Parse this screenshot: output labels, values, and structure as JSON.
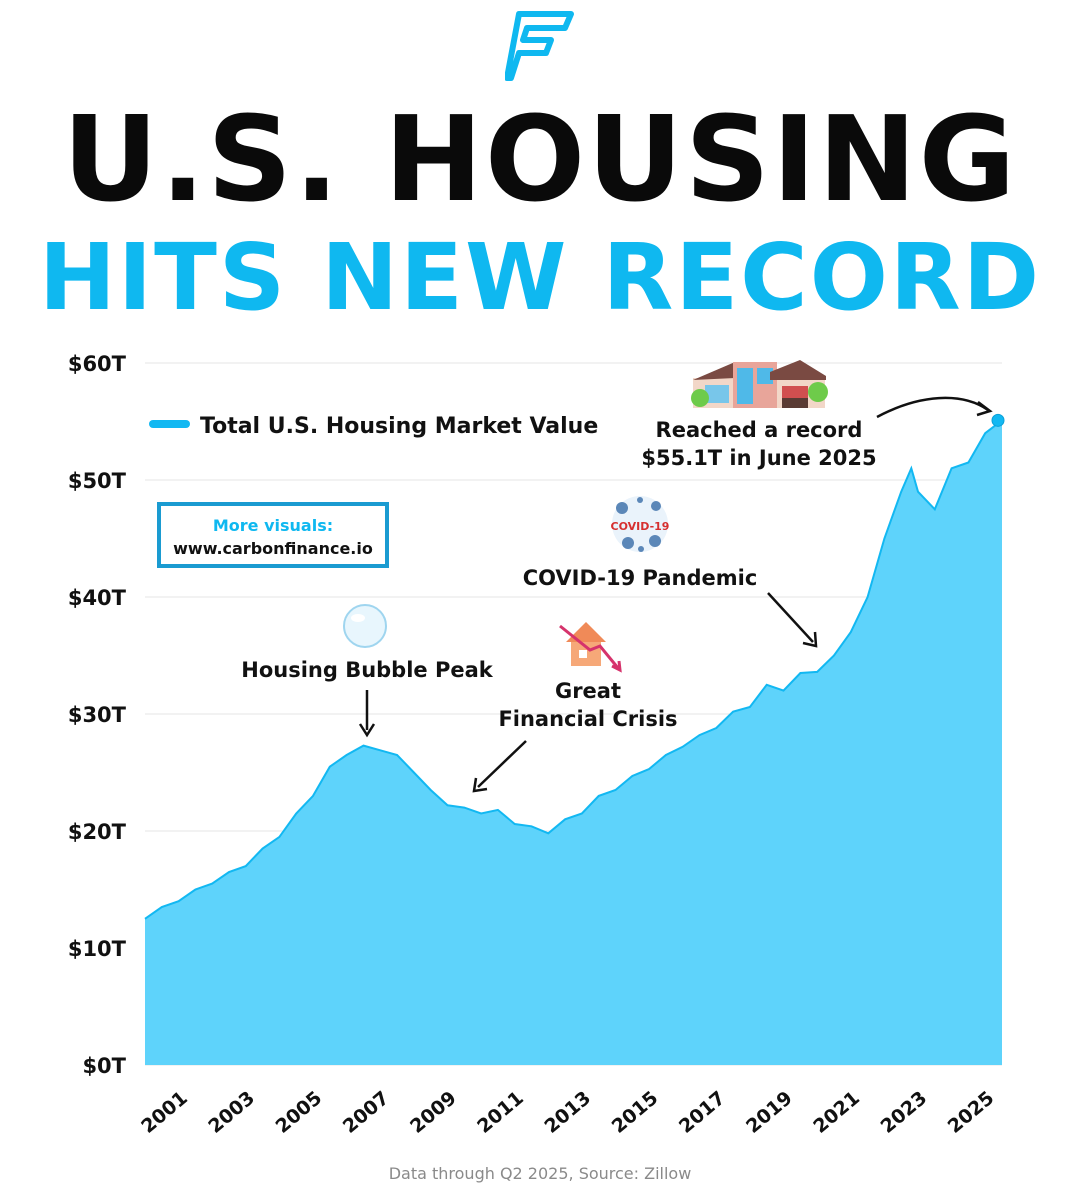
{
  "header": {
    "title_line1": "U.S. HOUSING",
    "title_line2": "HITS NEW RECORD",
    "logo_icon": "carbonfinance-f-logo-icon"
  },
  "promo": {
    "label": "More visuals:",
    "url": "www.carbonfinance.io"
  },
  "footer": {
    "source": "Data through Q2 2025, Source: Zillow"
  },
  "colors": {
    "accent": "#0fb8f0",
    "area_fill": "#5ed3fb",
    "line": "#12b8f2",
    "text": "#0a0a0a"
  },
  "chart_data": {
    "type": "area",
    "title": "Total U.S. Housing Market Value",
    "xlabel": "",
    "ylabel": "",
    "ylim": [
      0,
      60
    ],
    "xlim": [
      2000,
      2025.5
    ],
    "grid": true,
    "legend_position": "top-left",
    "yticks": [
      {
        "value": 0,
        "label": "$0T"
      },
      {
        "value": 10,
        "label": "$10T"
      },
      {
        "value": 20,
        "label": "$20T"
      },
      {
        "value": 30,
        "label": "$30T"
      },
      {
        "value": 40,
        "label": "$40T"
      },
      {
        "value": 50,
        "label": "$50T"
      },
      {
        "value": 60,
        "label": "$60T"
      }
    ],
    "xticks": [
      {
        "value": 2001,
        "label": "2001"
      },
      {
        "value": 2003,
        "label": "2003"
      },
      {
        "value": 2005,
        "label": "2005"
      },
      {
        "value": 2007,
        "label": "2007"
      },
      {
        "value": 2009,
        "label": "2009"
      },
      {
        "value": 2011,
        "label": "2011"
      },
      {
        "value": 2013,
        "label": "2013"
      },
      {
        "value": 2015,
        "label": "2015"
      },
      {
        "value": 2017,
        "label": "2017"
      },
      {
        "value": 2019,
        "label": "2019"
      },
      {
        "value": 2021,
        "label": "2021"
      },
      {
        "value": 2023,
        "label": "2023"
      },
      {
        "value": 2025,
        "label": "2025"
      }
    ],
    "series": [
      {
        "name": "Total U.S. Housing Market Value",
        "x": [
          2000,
          2000.5,
          2001,
          2001.5,
          2002,
          2002.5,
          2003,
          2003.5,
          2004,
          2004.5,
          2005,
          2005.5,
          2006,
          2006.5,
          2007,
          2007.5,
          2008,
          2008.5,
          2009,
          2009.5,
          2010,
          2010.5,
          2011,
          2011.5,
          2012,
          2012.5,
          2013,
          2013.5,
          2014,
          2014.5,
          2015,
          2015.5,
          2016,
          2016.5,
          2017,
          2017.5,
          2018,
          2018.5,
          2019,
          2019.5,
          2020,
          2020.5,
          2021,
          2021.5,
          2022,
          2022.5,
          2022.8,
          2023,
          2023.5,
          2024,
          2024.5,
          2025,
          2025.5
        ],
        "values": [
          12.5,
          13.5,
          14.0,
          15.0,
          15.5,
          16.5,
          17.0,
          18.5,
          19.5,
          21.5,
          23.0,
          25.5,
          26.5,
          27.3,
          26.9,
          26.5,
          25.0,
          23.5,
          22.2,
          22.0,
          21.5,
          21.8,
          20.6,
          20.4,
          19.8,
          21.0,
          21.5,
          23.0,
          23.5,
          24.7,
          25.3,
          26.5,
          27.2,
          28.2,
          28.8,
          30.2,
          30.6,
          32.5,
          32.0,
          33.5,
          33.6,
          35.0,
          37.0,
          40.0,
          45.0,
          49.0,
          51.0,
          49.0,
          47.5,
          51.0,
          51.5,
          54.0,
          55.1
        ]
      }
    ],
    "annotations": [
      {
        "id": "bubble",
        "text_lines": [
          "Housing Bubble Peak"
        ],
        "x": 2006.5,
        "y": 27.3
      },
      {
        "id": "gfc",
        "text_lines": [
          "Great",
          "Financial Crisis"
        ],
        "x": 2009.8,
        "y": 23.0
      },
      {
        "id": "covid",
        "text_lines": [
          "COVID-19 Pandemic"
        ],
        "x": 2020.5,
        "y": 35.0
      },
      {
        "id": "record",
        "text_lines": [
          "Reached a record",
          "$55.1T in June 2025"
        ],
        "x": 2025.5,
        "y": 55.1
      }
    ],
    "covid_badge": "COVID-19"
  }
}
